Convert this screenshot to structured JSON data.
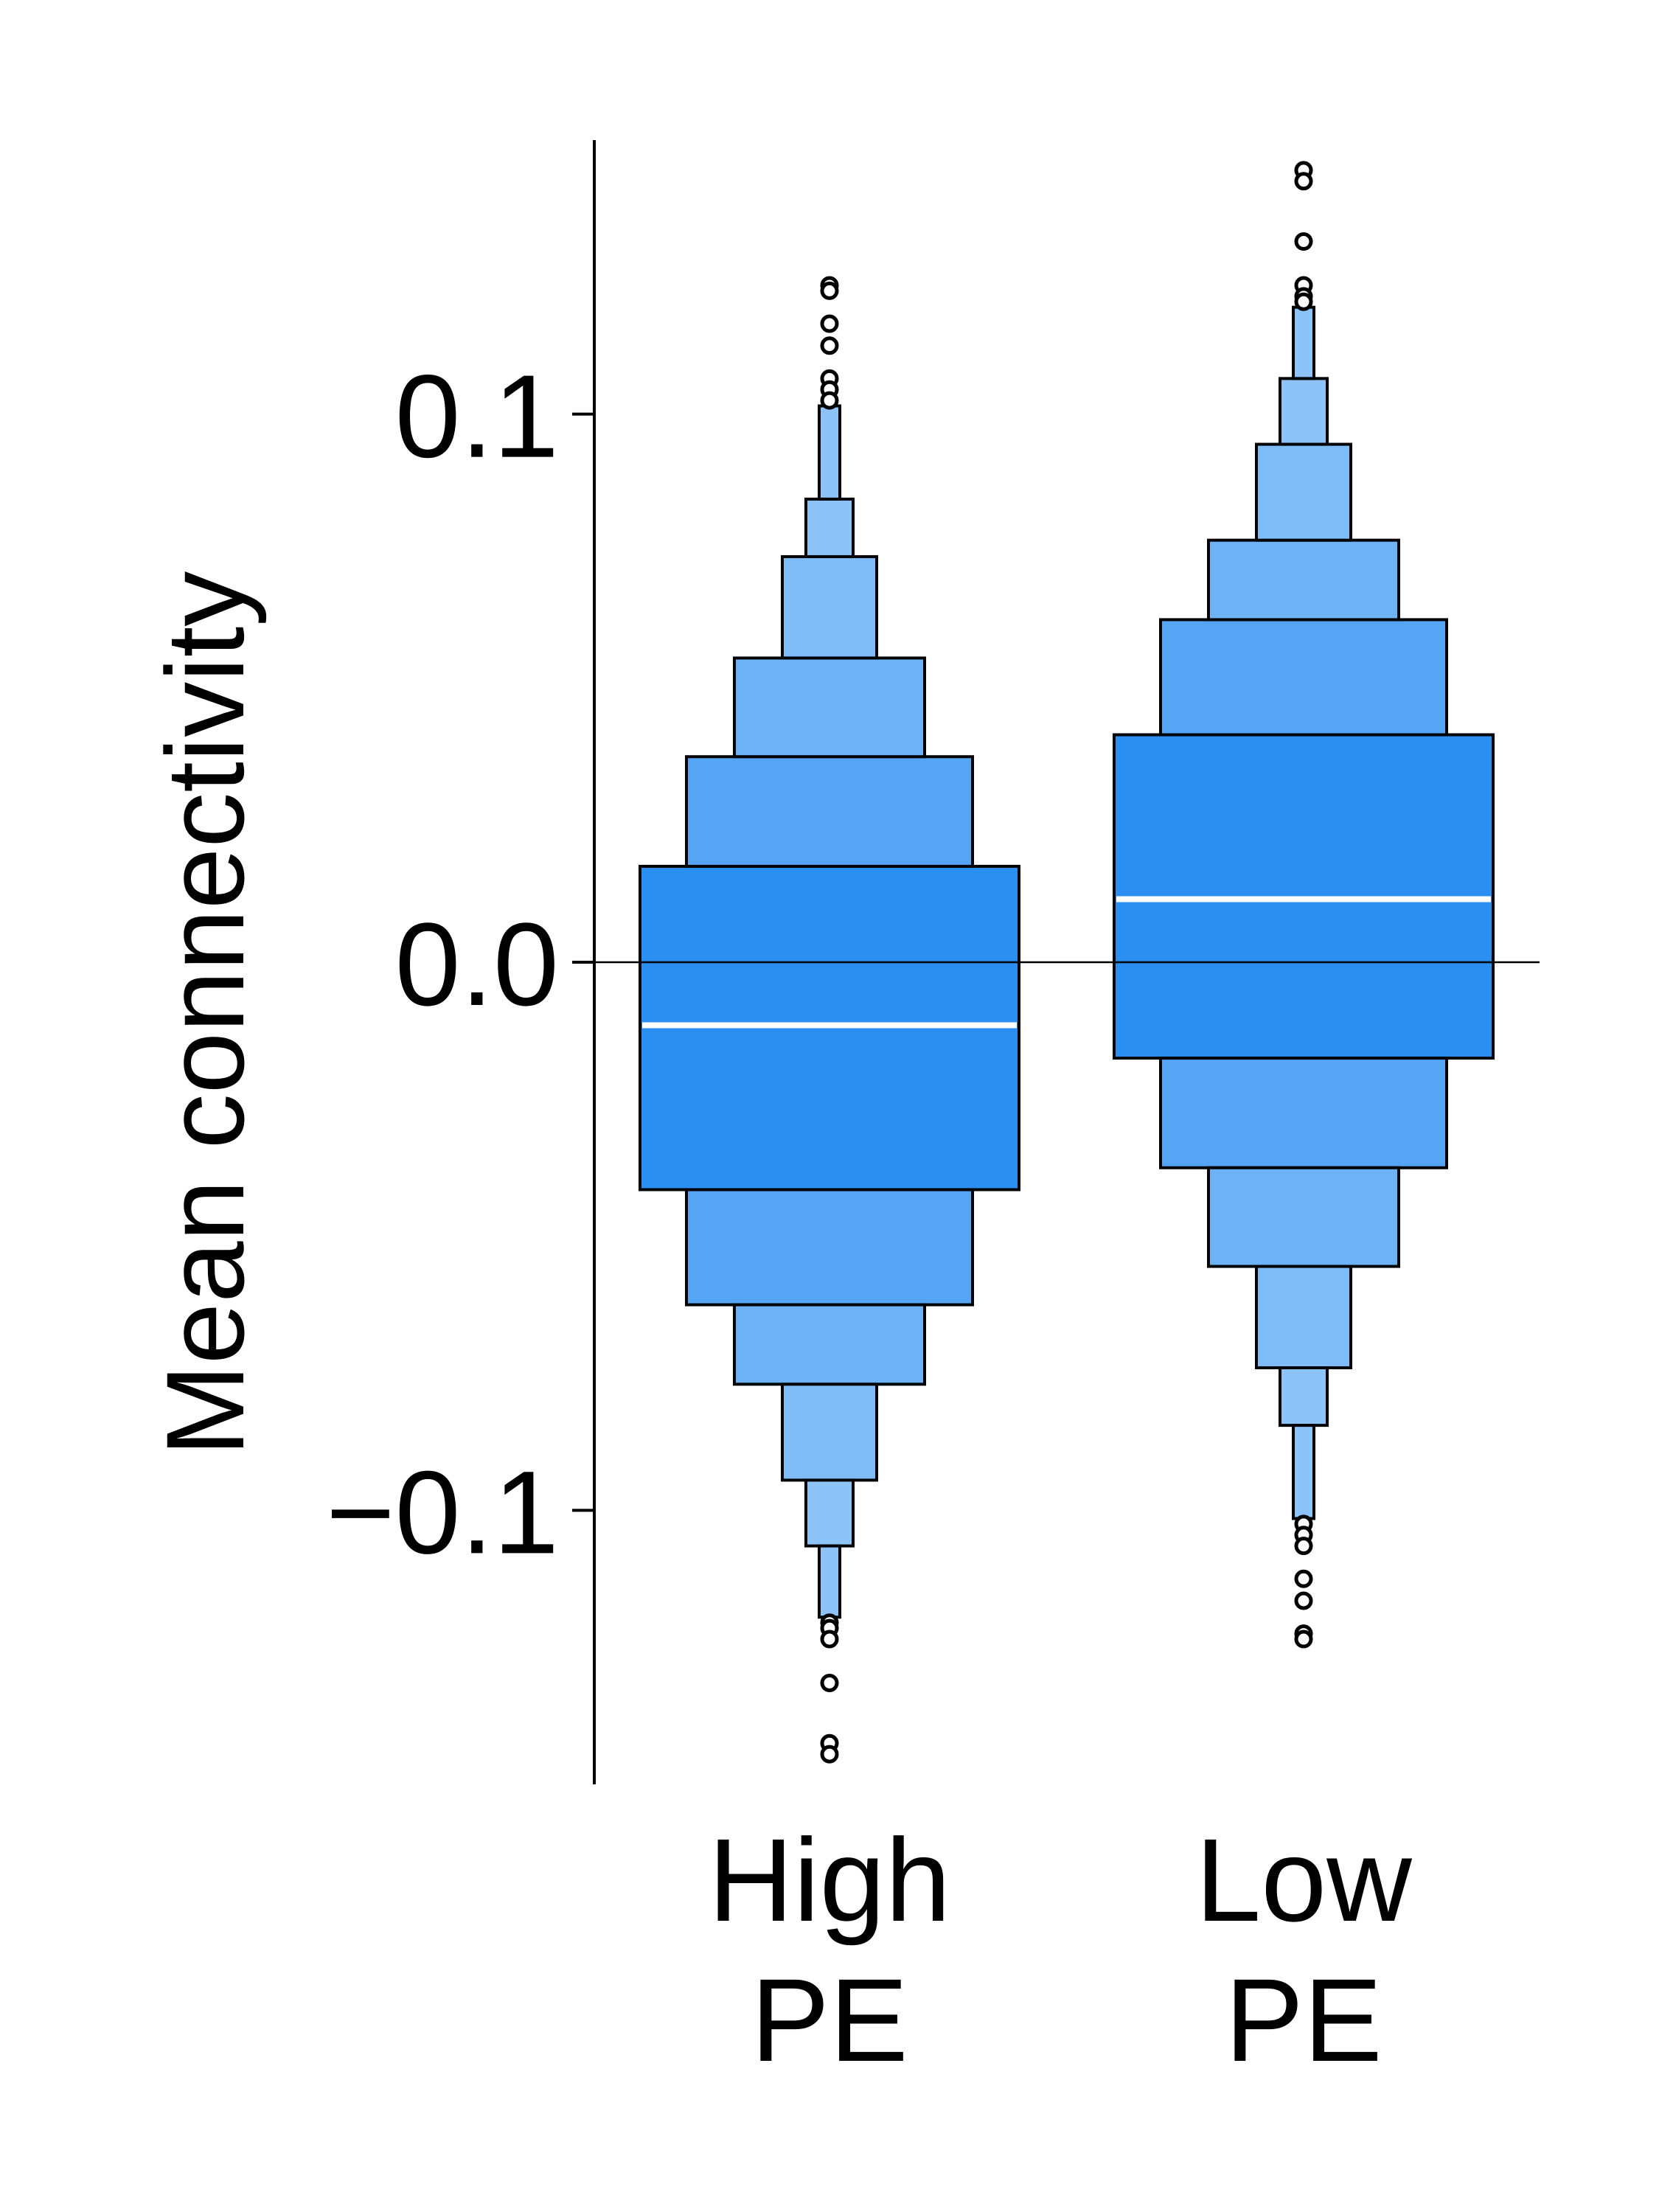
{
  "chart_data": {
    "type": "boxen",
    "title": "",
    "xlabel": "",
    "ylabel": "Mean connectivity",
    "ylim": [
      -0.15,
      0.15
    ],
    "yticks": [
      -0.1,
      0.0,
      0.1
    ],
    "ytick_labels": [
      "−0.1",
      "0.0",
      "0.1"
    ],
    "reference_line_y": 0.0,
    "grid": false,
    "legend": "none",
    "colors": {
      "level1": "#2b8ff2",
      "level2": "#55a5f4",
      "level3": "#6db2f5",
      "level4": "#7fbbf6",
      "level5": "#8ec3f7",
      "median": "#ffffff",
      "edge": "#000000"
    },
    "categories": [
      {
        "label_lines": [
          "High",
          "PE"
        ],
        "median": -0.0115,
        "levels": [
          [
            -0.0415,
            0.0175
          ],
          [
            -0.0625,
            0.0375
          ],
          [
            -0.077,
            0.0555
          ],
          [
            -0.0945,
            0.074
          ],
          [
            -0.1065,
            0.0845
          ],
          [
            -0.1195,
            0.1015
          ]
        ],
        "outliers": [
          0.1235,
          0.1225,
          0.1165,
          0.1125,
          0.1065,
          0.1045,
          0.1025,
          -0.1205,
          -0.1215,
          -0.1235,
          -0.1315,
          -0.1425,
          -0.1445
        ]
      },
      {
        "label_lines": [
          "Low",
          "PE"
        ],
        "median": 0.0115,
        "levels": [
          [
            -0.0175,
            0.0415
          ],
          [
            -0.0375,
            0.0625
          ],
          [
            -0.0555,
            0.077
          ],
          [
            -0.074,
            0.0945
          ],
          [
            -0.0845,
            0.1065
          ],
          [
            -0.1015,
            0.1195
          ]
        ],
        "outliers": [
          0.1445,
          0.1425,
          0.1315,
          0.1235,
          0.1215,
          0.1205,
          -0.1025,
          -0.1045,
          -0.1065,
          -0.1125,
          -0.1165,
          -0.1225,
          -0.1235
        ]
      }
    ]
  }
}
